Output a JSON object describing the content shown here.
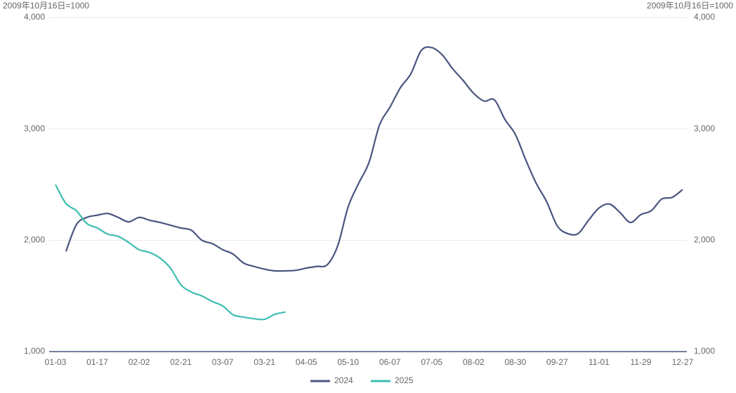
{
  "chart_data": {
    "type": "line",
    "y_label": "2009年10月16日=1000",
    "y2_label": "2009年10月16日=1000",
    "categories": [
      "01-03",
      null,
      null,
      null,
      "01-17",
      null,
      null,
      null,
      "02-02",
      null,
      null,
      null,
      "02-21",
      null,
      null,
      null,
      "03-07",
      null,
      null,
      null,
      "03-21",
      null,
      null,
      null,
      "04-05",
      null,
      null,
      null,
      "05-10",
      null,
      null,
      null,
      "06-07",
      null,
      null,
      null,
      "07-05",
      null,
      null,
      null,
      "08-02",
      null,
      null,
      null,
      "08-30",
      null,
      null,
      null,
      "09-27",
      null,
      null,
      null,
      "11-01",
      null,
      null,
      null,
      "11-29",
      null,
      null,
      null,
      "12-27"
    ],
    "series": [
      {
        "name": "2024",
        "color": "#4a5580",
        "values": [
          null,
          1900,
          2140,
          2205,
          2225,
          2240,
          2205,
          2165,
          2205,
          2180,
          2160,
          2135,
          2110,
          2090,
          2000,
          1970,
          1915,
          1875,
          1795,
          1765,
          1740,
          1725,
          1725,
          1730,
          1750,
          1765,
          1780,
          1950,
          2300,
          2510,
          2700,
          3035,
          3195,
          3370,
          3495,
          3705,
          3730,
          3665,
          3540,
          3435,
          3320,
          3250,
          3260,
          3085,
          2950,
          2720,
          2510,
          2345,
          2130,
          2060,
          2060,
          2180,
          2290,
          2325,
          2250,
          2160,
          2230,
          2265,
          2370,
          2385,
          2455
        ]
      },
      {
        "name": "2025",
        "color": "#3dbdb0",
        "values": [
          2500,
          2330,
          2265,
          2150,
          2110,
          2055,
          2035,
          1980,
          1915,
          1890,
          1840,
          1750,
          1600,
          1535,
          1500,
          1450,
          1410,
          1330,
          1310,
          1295,
          1290,
          1335,
          1355,
          null,
          null,
          null,
          null,
          null,
          null,
          null,
          null,
          null,
          null,
          null,
          null,
          null,
          null,
          null,
          null,
          null,
          null,
          null,
          null,
          null,
          null,
          null,
          null,
          null,
          null,
          null,
          null,
          null,
          null,
          null,
          null,
          null,
          null,
          null,
          null,
          null,
          null
        ]
      }
    ],
    "ylim": [
      1000,
      4000
    ],
    "yticks": [
      {
        "value": 1000,
        "label": "1,000"
      },
      {
        "value": 2000,
        "label": "2,000"
      },
      {
        "value": 3000,
        "label": "3,000"
      },
      {
        "value": 4000,
        "label": "4,000"
      }
    ],
    "y2lim": [
      1000,
      4000
    ],
    "y2ticks": [
      {
        "value": 1000,
        "label": "1,000"
      },
      {
        "value": 2000,
        "label": "2,000"
      },
      {
        "value": 3000,
        "label": "3,000"
      },
      {
        "value": 4000,
        "label": "4,000"
      }
    ],
    "grid": true,
    "legend": "bottom"
  }
}
